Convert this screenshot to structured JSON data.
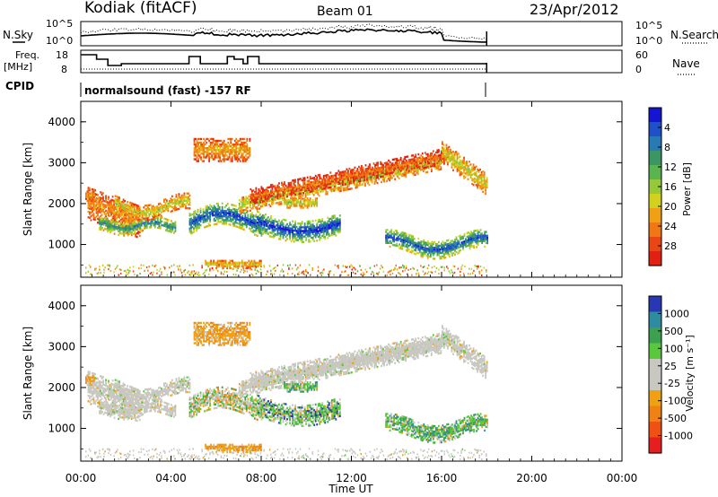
{
  "header": {
    "station": "Kodiak (fitACF)",
    "beam": "Beam 01",
    "date": "23/Apr/2012"
  },
  "top_panels": {
    "nsky_label": "N.Sky",
    "nsearch_label": "N.Search",
    "nsky_ticks": [
      "10^5",
      "10^0"
    ],
    "nsearch_ticks": [
      "10^5",
      "10^0"
    ],
    "freq_label_1": "Freq.",
    "freq_label_2": "[MHz]",
    "freq_ticks": [
      "18",
      "8"
    ],
    "nave_label": "Nave",
    "nave_ticks": [
      "60",
      "0"
    ],
    "cpid_label": "CPID",
    "cpid_text": "normalsound (fast)  -157 RF"
  },
  "chart_data": [
    {
      "type": "heatmap",
      "title": "",
      "xlabel": "Time UT",
      "ylabel": "Slant Range [km]",
      "xlim": [
        0,
        24
      ],
      "x_ticks": [
        "00:00",
        "04:00",
        "08:00",
        "12:00",
        "16:00",
        "20:00",
        "00:00"
      ],
      "ylim": [
        200,
        4500
      ],
      "y_ticks": [
        "1000",
        "2000",
        "3000",
        "4000"
      ],
      "colorbar": {
        "label": "Power [dB]",
        "ticks": [
          "4",
          "8",
          "12",
          "16",
          "20",
          "24",
          "28"
        ],
        "colors": [
          "#1414d2",
          "#1e50c8",
          "#287ab4",
          "#3c9664",
          "#5ab450",
          "#96c83c",
          "#d2d21e",
          "#f0a014",
          "#f07814",
          "#e84614",
          "#e02010"
        ]
      },
      "data_end_ut": 18.0
    },
    {
      "type": "heatmap",
      "title": "",
      "xlabel": "Time UT",
      "ylabel": "Slant Range [km]",
      "xlim": [
        0,
        24
      ],
      "x_ticks": [
        "00:00",
        "04:00",
        "08:00",
        "12:00",
        "16:00",
        "20:00",
        "00:00"
      ],
      "ylim": [
        200,
        4500
      ],
      "y_ticks": [
        "1000",
        "2000",
        "3000",
        "4000"
      ],
      "colorbar": {
        "label": "Velocity [m s⁻¹]",
        "ticks": [
          "1000",
          "500",
          "100",
          "25",
          "-25",
          "-100",
          "-500",
          "-1000"
        ],
        "colors": [
          "#2838b4",
          "#2e8ca0",
          "#3ca050",
          "#5ac83c",
          "#c8c8c0",
          "#c8c8c0",
          "#f0a014",
          "#f08214",
          "#f05014",
          "#e61e1e"
        ]
      },
      "data_end_ut": 18.0
    }
  ]
}
